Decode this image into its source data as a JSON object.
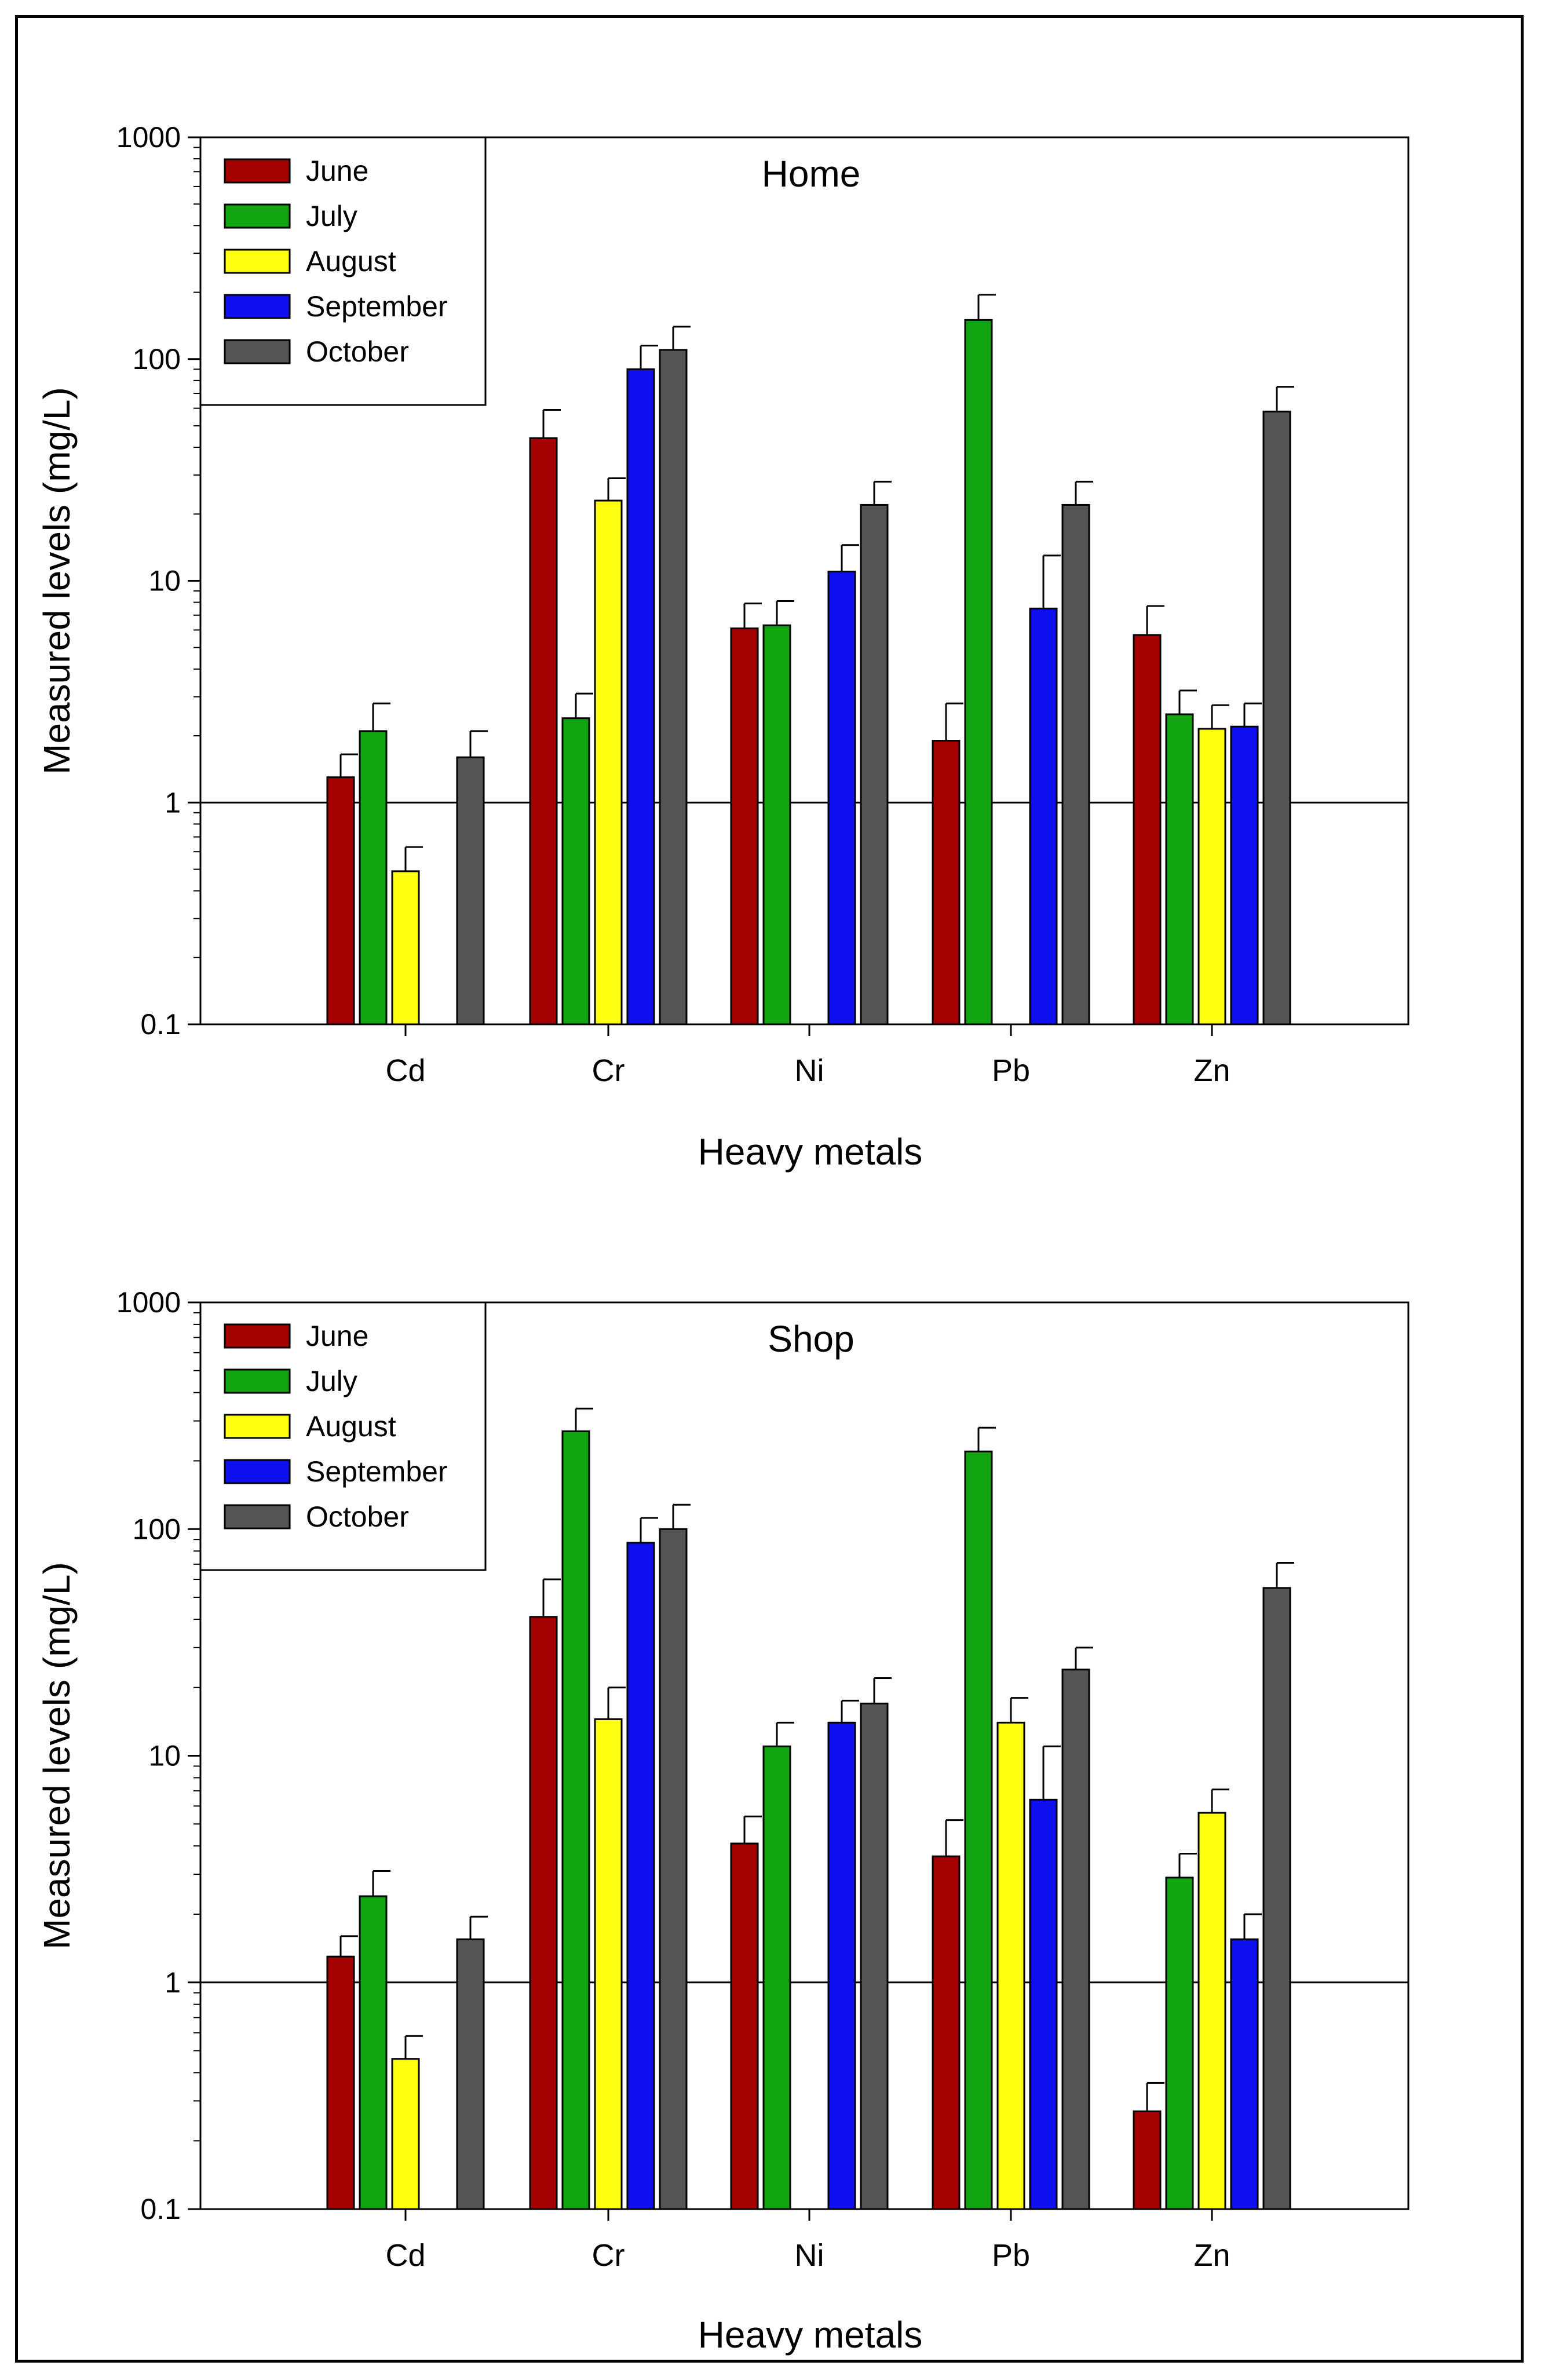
{
  "colors": {
    "June": "#a50000",
    "July": "#12a512",
    "August": "#ffff10",
    "September": "#0f10ef",
    "October": "#555555"
  },
  "chart_data": [
    {
      "type": "bar",
      "title": "Home",
      "xlabel": "Heavy metals",
      "ylabel": "Measured levels (mg/L)",
      "yscale": "log",
      "ylim": [
        0.1,
        1000
      ],
      "ytick_labels": [
        "0.1",
        "1",
        "10",
        "100",
        "1000"
      ],
      "reference_line": 1,
      "legend_position": "top-left",
      "categories": [
        "Cd",
        "Cr",
        "Ni",
        "Pb",
        "Zn"
      ],
      "series": [
        {
          "name": "June",
          "values": [
            1.3,
            44,
            6.1,
            1.9,
            5.7
          ],
          "errors": [
            1.65,
            59,
            7.9,
            2.8,
            7.7
          ]
        },
        {
          "name": "July",
          "values": [
            2.1,
            2.4,
            6.3,
            150,
            2.5
          ],
          "errors": [
            2.8,
            3.1,
            8.1,
            195,
            3.2
          ]
        },
        {
          "name": "August",
          "values": [
            0.49,
            23,
            null,
            null,
            2.15
          ],
          "errors": [
            0.63,
            29,
            null,
            null,
            2.75
          ]
        },
        {
          "name": "September",
          "values": [
            null,
            90,
            11,
            7.5,
            2.2
          ],
          "errors": [
            null,
            115,
            14.5,
            13,
            2.8
          ]
        },
        {
          "name": "October",
          "values": [
            1.6,
            110,
            22,
            22,
            58
          ],
          "errors": [
            2.1,
            140,
            28,
            28,
            75
          ]
        }
      ]
    },
    {
      "type": "bar",
      "title": "Shop",
      "xlabel": "Heavy metals",
      "ylabel": "Measured levels (mg/L)",
      "yscale": "log",
      "ylim": [
        0.1,
        1000
      ],
      "ytick_labels": [
        "0.1",
        "1",
        "10",
        "100",
        "1000"
      ],
      "reference_line": 1,
      "legend_position": "top-left",
      "categories": [
        "Cd",
        "Cr",
        "Ni",
        "Pb",
        "Zn"
      ],
      "series": [
        {
          "name": "June",
          "values": [
            1.3,
            41,
            4.1,
            3.6,
            0.27
          ],
          "errors": [
            1.6,
            60,
            5.4,
            5.2,
            0.36
          ]
        },
        {
          "name": "July",
          "values": [
            2.4,
            270,
            11,
            220,
            2.9
          ],
          "errors": [
            3.1,
            340,
            14,
            280,
            3.7
          ]
        },
        {
          "name": "August",
          "values": [
            0.46,
            14.5,
            null,
            14,
            5.6
          ],
          "errors": [
            0.58,
            20,
            null,
            18,
            7.1
          ]
        },
        {
          "name": "September",
          "values": [
            null,
            87,
            14,
            6.4,
            1.55
          ],
          "errors": [
            null,
            112,
            17.5,
            11,
            2.0
          ]
        },
        {
          "name": "October",
          "values": [
            1.55,
            100,
            17,
            24,
            55
          ],
          "errors": [
            1.95,
            128,
            22,
            30,
            71
          ]
        }
      ]
    }
  ]
}
